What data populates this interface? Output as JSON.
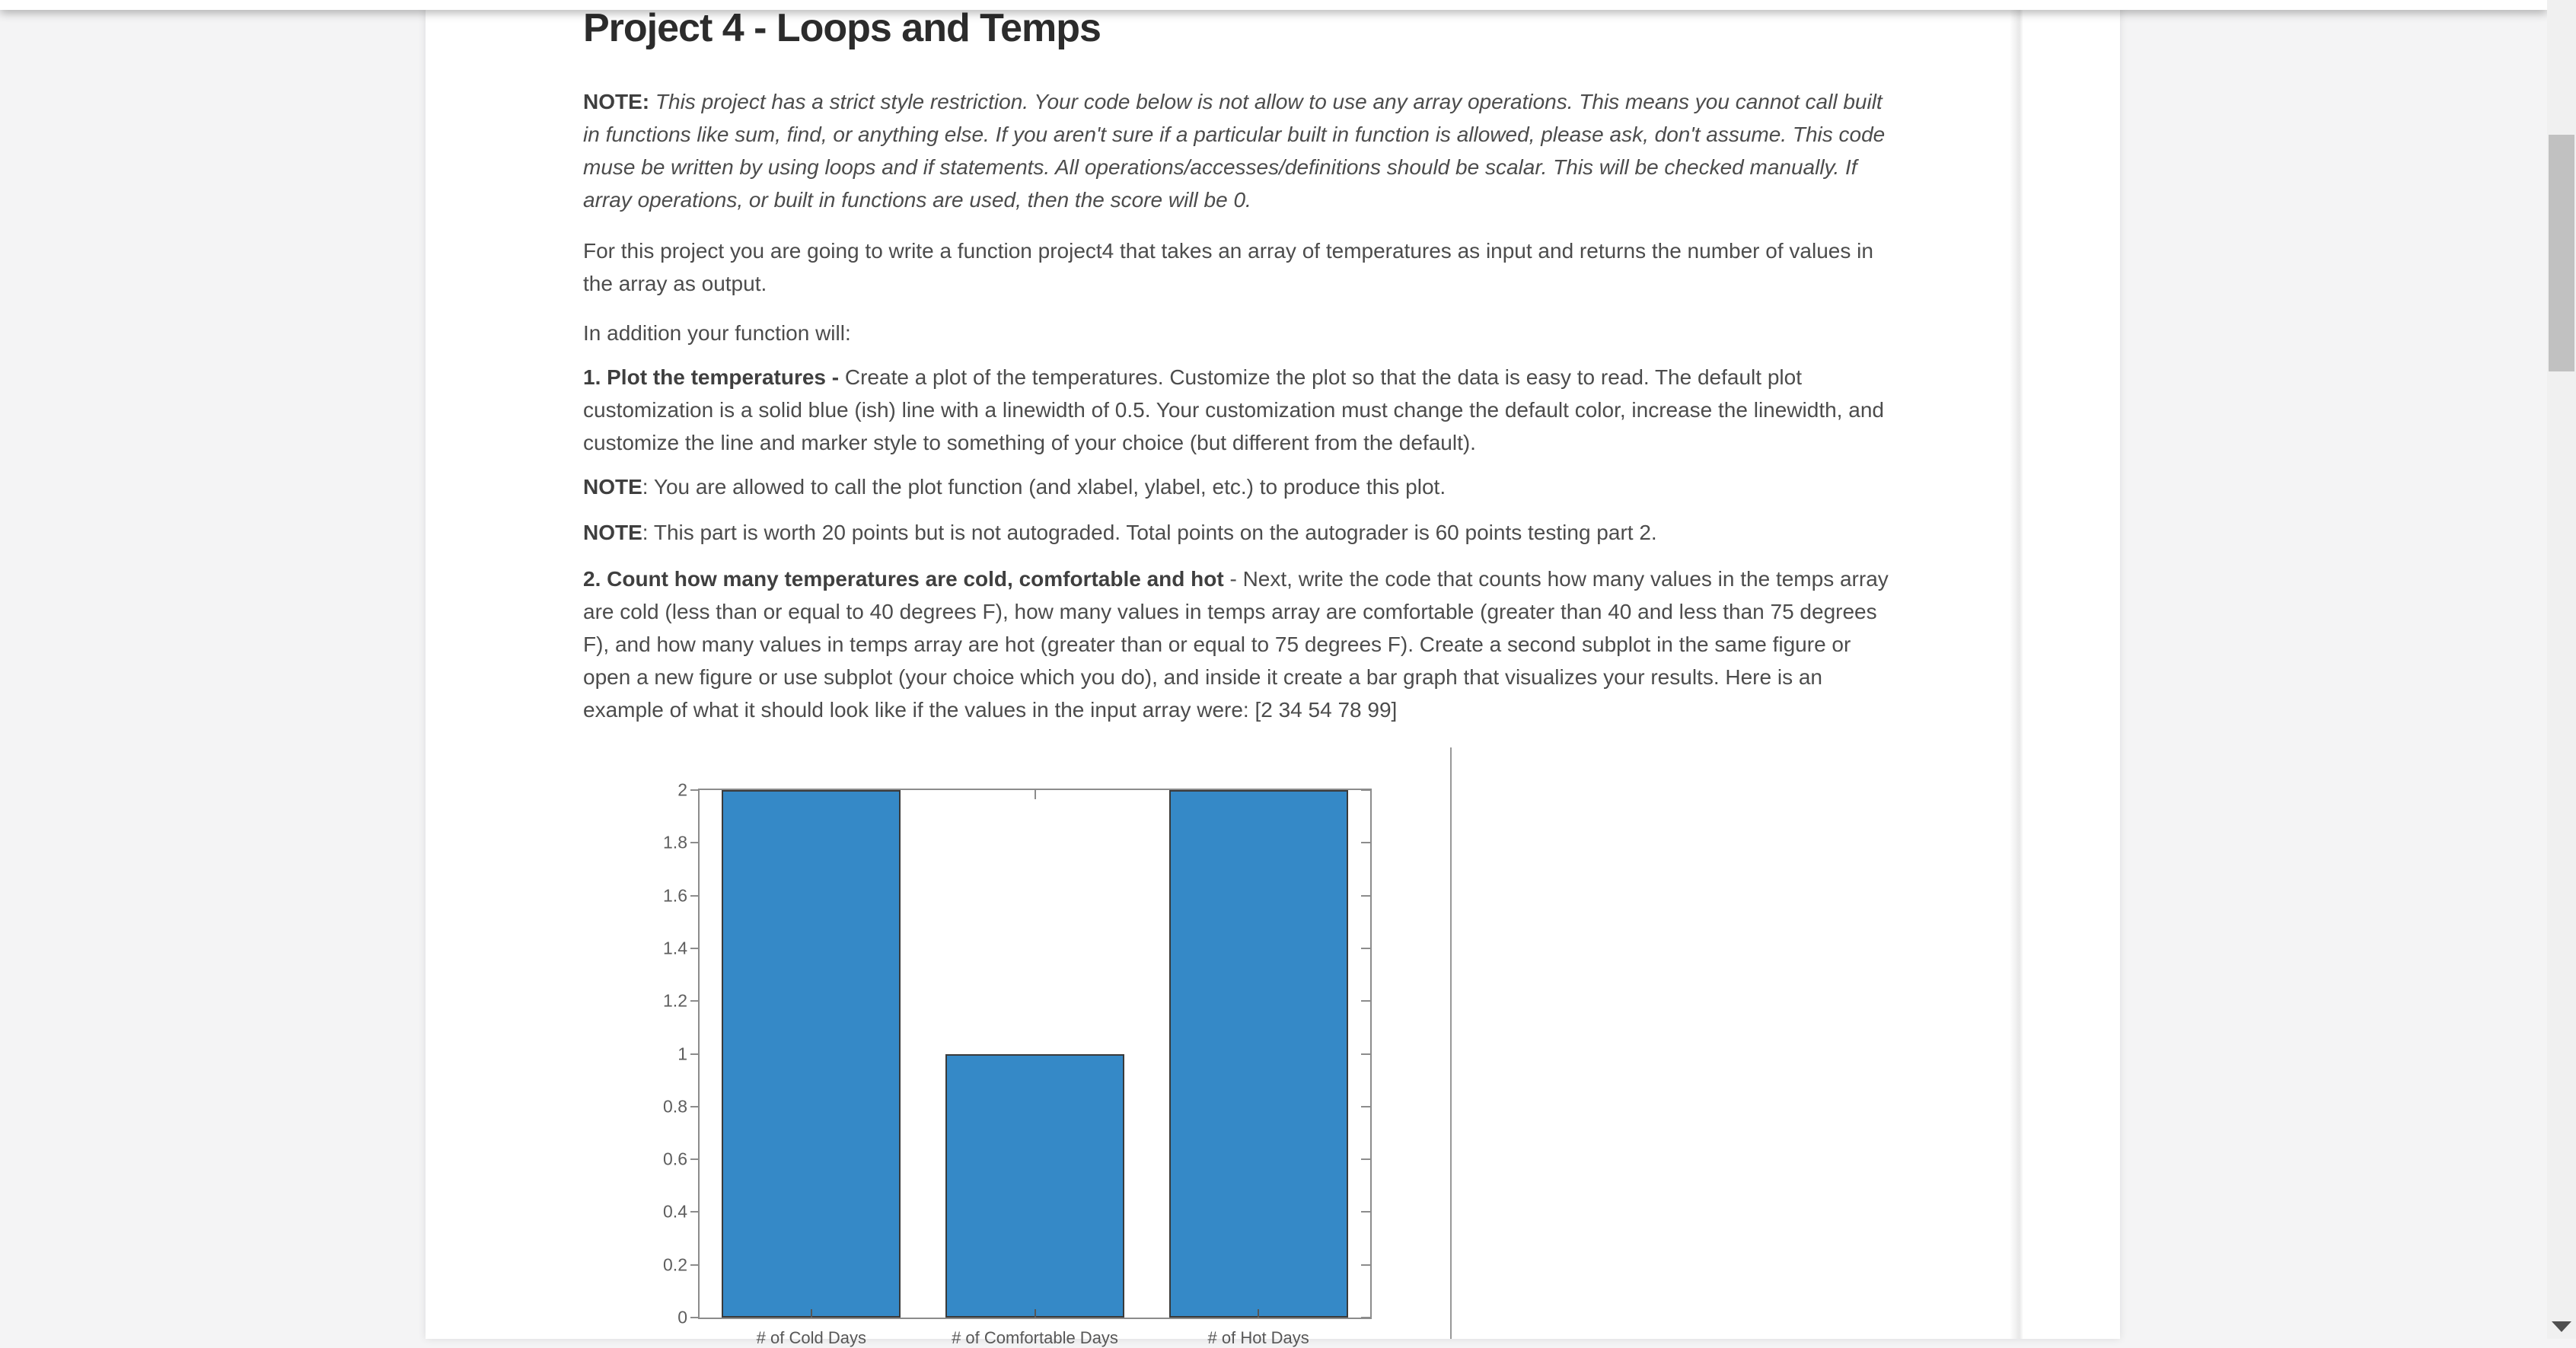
{
  "header": {
    "title": "Project 4 - Loops and Temps"
  },
  "document": {
    "paragraphs": [
      {
        "runs": [
          {
            "t": "NOTE: ",
            "b": true
          },
          {
            "t": " This project has a strict style restriction.  Your code below is not allow to use any array operations.  This means you cannot call built in functions like sum, find, or anything else.  If you aren't sure if a particular built in function is allowed, please ask, don't assume.  This code muse be written by using loops and if statements.  All operations/accesses/definitions should be scalar. This will be checked manually. If array operations, or built in functions are used, then the score will be 0.",
            "i": true
          }
        ]
      },
      {
        "runs": [
          {
            "t": "For this project you are going to write a function project4 that takes an array of temperatures as input and returns the number of values in the array as output."
          }
        ]
      },
      {
        "runs": [
          {
            "t": "In addition your function will:"
          }
        ]
      },
      {
        "runs": [
          {
            "t": "1.  Plot the temperatures - ",
            "b": true
          },
          {
            "t": "Create a plot of the temperatures.  Customize the plot so that the data is easy to read.  The default plot customization is a solid blue (ish) line with a linewidth of 0.5.  Your customization must change the default color, increase the linewidth, and customize the line and marker style to something of your choice (but different from the default)."
          }
        ]
      },
      {
        "runs": [
          {
            "t": "NOTE",
            "b": true
          },
          {
            "t": ":  You are allowed to call the plot function (and xlabel, ylabel, etc.) to produce this plot."
          }
        ]
      },
      {
        "runs": [
          {
            "t": "NOTE",
            "b": true
          },
          {
            "t": ":  This part is worth 20 points but is not autograded. Total points on the autograder is 60 points testing part 2."
          }
        ]
      },
      {
        "runs": [
          {
            "t": "2.  Count how many temperatures are cold, comfortable and hot ",
            "b": true
          },
          {
            "t": " - Next, write the code that counts how many values in the temps array are cold (less than or equal to 40 degrees F), how many values in temps array are comfortable (greater than 40 and less than 75 degrees F), and how many values in temps array are hot (greater than or equal to 75 degrees F).  Create a second subplot in the same figure or open a new figure or use subplot (your choice which you do), and inside it create a bar graph that visualizes your results.  Here is an example of what it should look like if the values in the input array were: [2 34 54 78 99]"
          }
        ]
      }
    ]
  },
  "chart_data": {
    "type": "bar",
    "categories": [
      "# of Cold Days",
      "# of Comfortable Days",
      "# of Hot Days"
    ],
    "values": [
      2,
      1,
      2
    ],
    "title": "",
    "xlabel": "",
    "ylabel": "",
    "ylim": [
      0,
      2
    ],
    "yticks": [
      "0",
      "0.2",
      "0.4",
      "0.6",
      "0.8",
      "1",
      "1.2",
      "1.4",
      "1.6",
      "1.8",
      "2"
    ],
    "grid": false,
    "legend_position": "none",
    "bar_width_fraction": 0.8,
    "example_input": "[2 34 54 78 99]"
  },
  "colors": {
    "page_background": "#f4f4f5",
    "card_background": "#ffffff",
    "heading_text": "#2c2c2c",
    "body_text": "#4c4c4c",
    "bar_fill": "#3589c7",
    "bar_edge": "#3a3a3a",
    "axis": "#8c8c8c",
    "tick_label": "#5e5e5e",
    "table_divider": "#989898",
    "scrollbar_track": "#f0f0f0",
    "scrollbar_thumb": "#c1c1c1",
    "scrollbar_arrow": "#4f4f4f"
  }
}
